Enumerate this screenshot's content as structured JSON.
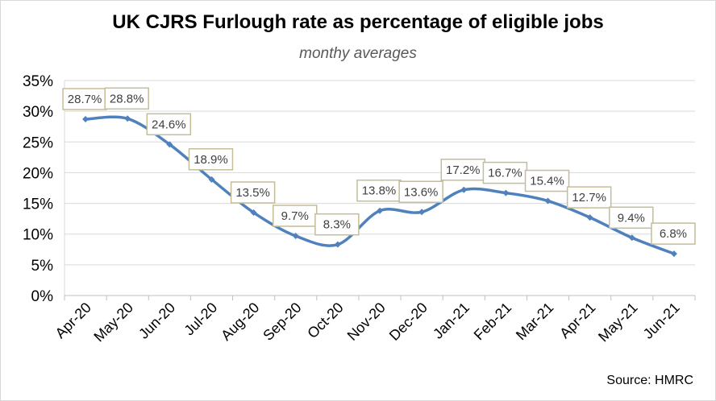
{
  "chart_data": {
    "type": "line",
    "title": "UK CJRS Furlough rate as percentage of eligible jobs",
    "subtitle": "monthy averages",
    "source": "Source: HMRC",
    "categories": [
      "Apr-20",
      "May-20",
      "Jun-20",
      "Jul-20",
      "Aug-20",
      "Sep-20",
      "Oct-20",
      "Nov-20",
      "Dec-20",
      "Jan-21",
      "Feb-21",
      "Mar-21",
      "Apr-21",
      "May-21",
      "Jun-21"
    ],
    "values": [
      28.7,
      28.8,
      24.6,
      18.9,
      13.5,
      9.7,
      8.3,
      13.8,
      13.6,
      17.2,
      16.7,
      15.4,
      12.7,
      9.4,
      6.8
    ],
    "data_labels": [
      "28.7%",
      "28.8%",
      "24.6%",
      "18.9%",
      "13.5%",
      "9.7%",
      "8.3%",
      "13.8%",
      "13.6%",
      "17.2%",
      "16.7%",
      "15.4%",
      "12.7%",
      "9.4%",
      "6.8%"
    ],
    "yticks": [
      0,
      5,
      10,
      15,
      20,
      25,
      30,
      35
    ],
    "ytick_labels": [
      "0%",
      "5%",
      "10%",
      "15%",
      "20%",
      "25%",
      "30%",
      "35%"
    ],
    "ylim": [
      0,
      35
    ],
    "xlabel": "",
    "ylabel": "",
    "grid": true,
    "line_color": "#4f81bd",
    "label_border_color": "#c4bd97",
    "grid_color": "#d9d9d9"
  }
}
